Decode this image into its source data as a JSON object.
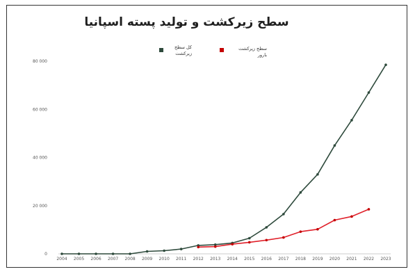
{
  "chart_data": {
    "type": "line",
    "title": "سطح زیرکشت و تولید پسته اسپانیا",
    "xlabel": "",
    "ylabel": "",
    "categories": [
      "2004",
      "2005",
      "2006",
      "2007",
      "2008",
      "2009",
      "2010",
      "2011",
      "2012",
      "2013",
      "2014",
      "2015",
      "2016",
      "2017",
      "2018",
      "2019",
      "2020",
      "2021",
      "2022",
      "2023"
    ],
    "ylim": [
      0,
      80000
    ],
    "yticks": [
      0,
      20000,
      40000,
      60000,
      80000
    ],
    "ytick_labels": [
      "0",
      "20 000",
      "40 000",
      "60 000",
      "80 000"
    ],
    "grid": false,
    "legend_position": "top",
    "series": [
      {
        "name": "کل سطح\nزیرکشت",
        "color": "#2e4a3c",
        "marker_color": "#2e4a3c",
        "values": [
          0,
          0,
          0,
          0,
          0,
          1000,
          1300,
          2000,
          3500,
          3800,
          4500,
          6500,
          11000,
          16500,
          25500,
          33000,
          45000,
          55500,
          67000,
          78500
        ]
      },
      {
        "name": "سطح زیرکشت\nبارور",
        "color": "#e0202a",
        "marker_color": "#c40000",
        "values": [
          null,
          null,
          null,
          null,
          null,
          null,
          null,
          null,
          2800,
          3000,
          4000,
          4800,
          5700,
          6800,
          9200,
          10200,
          14000,
          15500,
          18500,
          null
        ]
      }
    ]
  }
}
